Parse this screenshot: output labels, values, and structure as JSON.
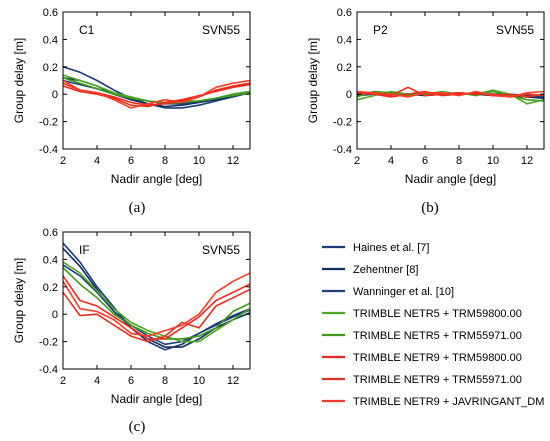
{
  "chart_data": [
    {
      "type": "line",
      "panel_label": "C1",
      "satellite": "SVN55",
      "caption": "(a)",
      "xlabel": "Nadir angle [deg]",
      "ylabel": "Group delay [m]",
      "xlim": [
        2,
        13
      ],
      "ylim": [
        -0.4,
        0.6
      ],
      "xticks": [
        "2",
        "4",
        "6",
        "8",
        "10",
        "12"
      ],
      "yticks": [
        "-0.4",
        "-0.2",
        "0",
        "0.2",
        "0.4",
        "0.6"
      ],
      "x": [
        2,
        3,
        4,
        5,
        6,
        7,
        8,
        9,
        10,
        11,
        12,
        13
      ],
      "series": [
        {
          "name": "Haines et al. [7]",
          "color": "#1a3a7a",
          "values": [
            0.2,
            0.16,
            0.1,
            0.03,
            -0.03,
            -0.07,
            -0.1,
            -0.1,
            -0.08,
            -0.05,
            -0.02,
            0.01
          ]
        },
        {
          "name": "Zehentner [8]",
          "color": "#0f2d62",
          "values": [
            0.12,
            0.1,
            0.06,
            0.0,
            -0.04,
            -0.07,
            -0.09,
            -0.08,
            -0.06,
            -0.04,
            -0.01,
            0.02
          ]
        },
        {
          "name": "Wanninger et al. [10]",
          "color": "#1f3f80",
          "values": [
            0.1,
            0.07,
            0.04,
            0.0,
            -0.03,
            -0.05,
            -0.07,
            -0.07,
            -0.05,
            -0.03,
            0.0,
            0.02
          ]
        },
        {
          "name": "TRIMBLE NETR5 + TRM59800.00",
          "color": "#4ea821",
          "values": [
            0.14,
            0.1,
            0.06,
            0.01,
            -0.02,
            -0.05,
            -0.06,
            -0.05,
            -0.05,
            -0.03,
            0.0,
            0.02
          ]
        },
        {
          "name": "TRIMBLE NETR5 + TRM55971.00",
          "color": "#3f9a1a",
          "values": [
            0.12,
            0.08,
            0.04,
            0.0,
            -0.03,
            -0.05,
            -0.07,
            -0.06,
            -0.05,
            -0.03,
            -0.01,
            0.01
          ]
        },
        {
          "name": "TRIMBLE NETR9 + TRM59800.00",
          "color": "#f0291f",
          "values": [
            0.08,
            0.03,
            0.01,
            -0.02,
            -0.06,
            -0.08,
            -0.07,
            -0.05,
            -0.02,
            0.03,
            0.06,
            0.08
          ]
        },
        {
          "name": "TRIMBLE NETR9 + TRM55971.00",
          "color": "#e8301f",
          "values": [
            0.06,
            0.02,
            0.0,
            -0.03,
            -0.08,
            -0.09,
            -0.06,
            -0.04,
            -0.01,
            0.02,
            0.05,
            0.07
          ]
        },
        {
          "name": "TRIMBLE NETR9 + JAVRINGANT_DM",
          "color": "#ff3b2a",
          "values": [
            0.1,
            0.03,
            0.01,
            -0.04,
            -0.1,
            -0.07,
            -0.04,
            -0.06,
            -0.02,
            0.05,
            0.08,
            0.1
          ]
        }
      ]
    },
    {
      "type": "line",
      "panel_label": "P2",
      "satellite": "SVN55",
      "caption": "(b)",
      "xlabel": "Nadir angle [deg]",
      "ylabel": "Group delay [m]",
      "xlim": [
        2,
        13
      ],
      "ylim": [
        -0.4,
        0.6
      ],
      "xticks": [
        "2",
        "4",
        "6",
        "8",
        "10",
        "12"
      ],
      "yticks": [
        "-0.4",
        "-0.2",
        "0",
        "0.2",
        "0.4",
        "0.6"
      ],
      "x": [
        2,
        3,
        4,
        5,
        6,
        7,
        8,
        9,
        10,
        11,
        12,
        13
      ],
      "series": [
        {
          "name": "Haines et al. [7]",
          "color": "#1a3a7a",
          "values": [
            0.0,
            0.01,
            0.01,
            0.0,
            0.0,
            0.0,
            0.0,
            0.0,
            0.0,
            -0.01,
            -0.02,
            -0.02
          ]
        },
        {
          "name": "Zehentner [8]",
          "color": "#0f2d62",
          "values": [
            -0.01,
            0.0,
            0.01,
            0.0,
            -0.01,
            0.0,
            0.01,
            0.0,
            -0.01,
            -0.01,
            -0.02,
            -0.03
          ]
        },
        {
          "name": "Wanninger et al. [10]",
          "color": "#1f3f80",
          "values": [
            0.0,
            0.0,
            0.0,
            0.0,
            0.0,
            0.0,
            0.0,
            0.0,
            0.0,
            0.0,
            -0.01,
            -0.02
          ]
        },
        {
          "name": "TRIMBLE NETR5 + TRM59800.00",
          "color": "#4ea821",
          "values": [
            -0.04,
            -0.01,
            0.02,
            0.0,
            0.0,
            0.02,
            0.0,
            0.0,
            0.03,
            0.0,
            -0.07,
            -0.04
          ]
        },
        {
          "name": "TRIMBLE NETR5 + TRM55971.00",
          "color": "#3f9a1a",
          "values": [
            -0.02,
            0.02,
            0.01,
            -0.01,
            0.01,
            0.0,
            0.01,
            -0.01,
            0.02,
            -0.01,
            -0.04,
            -0.05
          ]
        },
        {
          "name": "TRIMBLE NETR9 + TRM59800.00",
          "color": "#f0291f",
          "values": [
            0.0,
            0.01,
            -0.01,
            0.05,
            -0.01,
            0.0,
            0.01,
            0.0,
            0.0,
            -0.02,
            0.0,
            -0.01
          ]
        },
        {
          "name": "TRIMBLE NETR9 + TRM55971.00",
          "color": "#e8301f",
          "values": [
            0.01,
            0.0,
            -0.02,
            0.0,
            0.02,
            -0.01,
            0.0,
            0.01,
            -0.01,
            0.0,
            -0.02,
            0.0
          ]
        },
        {
          "name": "TRIMBLE NETR9 + JAVRINGANT_DM",
          "color": "#ff3b2a",
          "values": [
            0.02,
            0.01,
            0.0,
            -0.02,
            0.01,
            0.01,
            -0.01,
            0.02,
            -0.01,
            -0.02,
            0.01,
            0.02
          ]
        }
      ]
    },
    {
      "type": "line",
      "panel_label": "IF",
      "satellite": "SVN55",
      "caption": "(c)",
      "xlabel": "Nadir angle [deg]",
      "ylabel": "Group delay [m]",
      "xlim": [
        2,
        13
      ],
      "ylim": [
        -0.4,
        0.6
      ],
      "xticks": [
        "2",
        "4",
        "6",
        "8",
        "10",
        "12"
      ],
      "yticks": [
        "-0.4",
        "-0.2",
        "0",
        "0.2",
        "0.4",
        "0.6"
      ],
      "x": [
        2,
        3,
        4,
        5,
        6,
        7,
        8,
        9,
        10,
        11,
        12,
        13
      ],
      "series": [
        {
          "name": "Haines et al. [7]",
          "color": "#1a3a7a",
          "values": [
            0.52,
            0.38,
            0.2,
            0.05,
            -0.1,
            -0.2,
            -0.26,
            -0.22,
            -0.14,
            -0.07,
            -0.01,
            0.04
          ]
        },
        {
          "name": "Zehentner [8]",
          "color": "#0f2d62",
          "values": [
            0.48,
            0.35,
            0.18,
            0.02,
            -0.1,
            -0.18,
            -0.24,
            -0.24,
            -0.18,
            -0.1,
            -0.04,
            0.01
          ]
        },
        {
          "name": "Wanninger et al. [10]",
          "color": "#1f3f80",
          "values": [
            0.36,
            0.28,
            0.16,
            0.02,
            -0.08,
            -0.16,
            -0.22,
            -0.2,
            -0.14,
            -0.08,
            -0.02,
            0.03
          ]
        },
        {
          "name": "TRIMBLE NETR5 + TRM59800.00",
          "color": "#4ea821",
          "values": [
            0.38,
            0.3,
            0.17,
            0.04,
            -0.06,
            -0.12,
            -0.16,
            -0.2,
            -0.2,
            -0.12,
            -0.04,
            0.04
          ]
        },
        {
          "name": "TRIMBLE NETR5 + TRM55971.00",
          "color": "#3f9a1a",
          "values": [
            0.34,
            0.22,
            0.12,
            0.0,
            -0.08,
            -0.14,
            -0.18,
            -0.18,
            -0.16,
            -0.1,
            0.02,
            0.08
          ]
        },
        {
          "name": "TRIMBLE NETR9 + TRM59800.00",
          "color": "#f0291f",
          "values": [
            0.28,
            0.1,
            0.06,
            -0.02,
            -0.1,
            -0.18,
            -0.18,
            -0.1,
            -0.02,
            0.1,
            0.16,
            0.22
          ]
        },
        {
          "name": "TRIMBLE NETR9 + TRM55971.00",
          "color": "#e8301f",
          "values": [
            0.16,
            -0.01,
            0.0,
            -0.08,
            -0.16,
            -0.2,
            -0.16,
            -0.06,
            -0.1,
            0.06,
            0.12,
            0.18
          ]
        },
        {
          "name": "TRIMBLE NETR9 + JAVRINGANT_DM",
          "color": "#ff3b2a",
          "values": [
            0.24,
            0.04,
            0.02,
            -0.04,
            -0.14,
            -0.16,
            -0.12,
            -0.08,
            0.0,
            0.16,
            0.24,
            0.3
          ]
        }
      ]
    }
  ],
  "legend": [
    {
      "label": "Haines et al. [7]",
      "color": "#1a3a7a"
    },
    {
      "label": "Zehentner [8]",
      "color": "#0f2d62"
    },
    {
      "label": "Wanninger et al. [10]",
      "color": "#1f3f80"
    },
    {
      "label": "TRIMBLE NETR5 + TRM59800.00",
      "color": "#4ea821"
    },
    {
      "label": "TRIMBLE NETR5 + TRM55971.00",
      "color": "#3f9a1a"
    },
    {
      "label": "TRIMBLE NETR9 + TRM59800.00",
      "color": "#f0291f"
    },
    {
      "label": "TRIMBLE NETR9 + TRM55971.00",
      "color": "#e8301f"
    },
    {
      "label": "TRIMBLE NETR9 + JAVRINGANT_DM",
      "color": "#ff3b2a"
    }
  ]
}
